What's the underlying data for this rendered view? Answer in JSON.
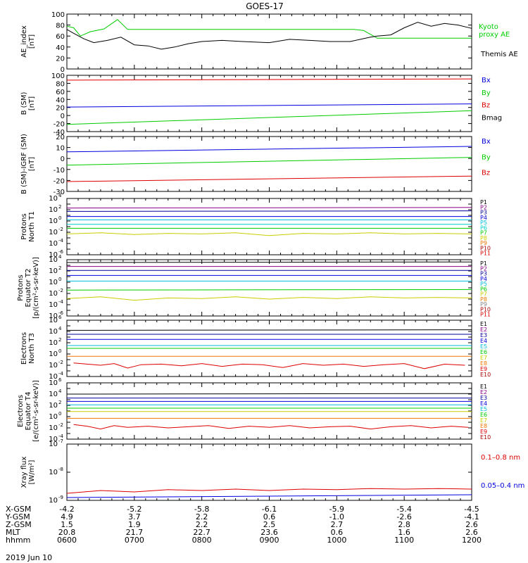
{
  "title": "GOES-17",
  "date_label": "2019 Jun 10",
  "ephemeris": {
    "row_labels": [
      "X-GSM",
      "Y-GSM",
      "Z-GSM",
      "MLT",
      "hhmm"
    ],
    "columns": [
      [
        "-4.2",
        "4.9",
        "1.5",
        "20.8",
        "0600"
      ],
      [
        "-5.2",
        "3.7",
        "1.9",
        "21.7",
        "0700"
      ],
      [
        "-5.8",
        "2.2",
        "2.2",
        "22.7",
        "0800"
      ],
      [
        "-6.1",
        "0.6",
        "2.5",
        "23.6",
        "0900"
      ],
      [
        "-5.9",
        "-1.0",
        "2.7",
        "0.6",
        "1000"
      ],
      [
        "-5.4",
        "-2.6",
        "2.8",
        "1.6",
        "1100"
      ],
      [
        "-4.5",
        "-4.1",
        "2.6",
        "2.6",
        "1200"
      ]
    ]
  },
  "colors": {
    "green": "#00cc00",
    "blue": "#0000dd",
    "red": "#dd0000",
    "black": "#000000",
    "orange": "#ee7700",
    "yellow": "#cccc00",
    "cyan": "#00bbdd",
    "teal": "#00cccc",
    "navy": "#000099",
    "purple": "#880088",
    "darkred": "#aa0000",
    "gray": "#888888"
  },
  "chart_data": [
    {
      "type": "line",
      "ylabel": "AE_index\n[nT]",
      "ylim": [
        0,
        100
      ],
      "yscale": "linear",
      "yticks": [
        "0",
        "20",
        "40",
        "60",
        "80",
        "100"
      ],
      "xlim": [
        6,
        12
      ],
      "series": [
        {
          "name": "Kyoto\nproxy AE",
          "color": "#00cc00",
          "x": [
            6.0,
            6.1,
            6.2,
            6.35,
            6.55,
            6.75,
            6.9,
            7.05,
            7.2,
            8.0,
            9.0,
            10.0,
            10.25,
            10.4,
            10.6,
            12.0
          ],
          "y": [
            78,
            75,
            60,
            68,
            73,
            90,
            72,
            72,
            72,
            72,
            72,
            72,
            72,
            70,
            56,
            56
          ]
        },
        {
          "name": "Themis AE",
          "color": "#000000",
          "x": [
            6.0,
            6.1,
            6.25,
            6.4,
            6.6,
            6.8,
            7.0,
            7.2,
            7.4,
            7.6,
            7.8,
            8.0,
            8.3,
            8.6,
            9.0,
            9.3,
            9.6,
            9.9,
            10.2,
            10.35,
            10.5,
            10.6,
            10.8,
            11.0,
            11.2,
            11.4,
            11.6,
            11.8,
            12.0
          ],
          "y": [
            72,
            65,
            55,
            48,
            52,
            58,
            44,
            42,
            36,
            40,
            46,
            50,
            52,
            50,
            48,
            54,
            52,
            50,
            50,
            54,
            58,
            60,
            62,
            75,
            85,
            78,
            83,
            80,
            74
          ]
        }
      ]
    },
    {
      "type": "line",
      "ylabel": "B (SM)\n[nT]",
      "ylim": [
        -40,
        100
      ],
      "yscale": "linear",
      "yticks": [
        "-40",
        "-20",
        "0",
        "20",
        "40",
        "60",
        "80",
        "100"
      ],
      "xlim": [
        6,
        12
      ],
      "series": [
        {
          "name": "Bx",
          "color": "#0000dd",
          "x": [
            6,
            12
          ],
          "y": [
            21,
            29
          ]
        },
        {
          "name": "By",
          "color": "#00cc00",
          "x": [
            6,
            12
          ],
          "y": [
            -22,
            12
          ]
        },
        {
          "name": "Bz",
          "color": "#dd0000",
          "x": [
            6,
            12
          ],
          "y": [
            88,
            91
          ]
        },
        {
          "name": "Bmag",
          "color": "#000000",
          "x": [],
          "y": []
        }
      ]
    },
    {
      "type": "line",
      "ylabel": "B (SM)-IGRF (SM)\n[nT]",
      "ylim": [
        -30,
        20
      ],
      "yscale": "linear",
      "yticks": [
        "-30",
        "-20",
        "-10",
        "0",
        "10",
        "20"
      ],
      "xlim": [
        6,
        12
      ],
      "series": [
        {
          "name": "Bx",
          "color": "#0000dd",
          "x": [
            6,
            12
          ],
          "y": [
            6,
            11
          ]
        },
        {
          "name": "By",
          "color": "#00cc00",
          "x": [
            6,
            12
          ],
          "y": [
            -6,
            1
          ]
        },
        {
          "name": "Bz",
          "color": "#dd0000",
          "x": [
            6,
            12
          ],
          "y": [
            -21,
            -16
          ]
        }
      ]
    },
    {
      "type": "line",
      "ylabel": "Protons\nNorth T1",
      "ylim_exp": [
        -6,
        4
      ],
      "yscale": "log",
      "xlim": [
        6,
        12
      ],
      "series": [
        {
          "name": "P1",
          "color": "#000000",
          "x": [],
          "y": []
        },
        {
          "name": "P2",
          "color": "#880088",
          "x": [
            6,
            12
          ],
          "y": [
            2.3,
            2.4
          ]
        },
        {
          "name": "P3",
          "color": "#000099",
          "x": [
            6,
            12
          ],
          "y": [
            1.7,
            1.8
          ]
        },
        {
          "name": "P4",
          "color": "#0000dd",
          "x": [
            6,
            12
          ],
          "y": [
            0.8,
            0.8
          ]
        },
        {
          "name": "P5",
          "color": "#00bbdd",
          "x": [
            6,
            12
          ],
          "y": [
            0.2,
            0.2
          ]
        },
        {
          "name": "P6",
          "color": "#00cccc",
          "x": [
            6,
            12
          ],
          "y": [
            -0.6,
            -0.6
          ]
        },
        {
          "name": "P7",
          "color": "#00cc00",
          "x": [
            6,
            12
          ],
          "y": [
            -1.3,
            -1.3
          ]
        },
        {
          "name": "P8",
          "color": "#cccc00",
          "x": [
            6,
            6.5,
            7,
            7.5,
            8,
            8.5,
            9,
            9.5,
            10,
            10.5,
            11,
            11.5,
            12
          ],
          "y": [
            -2.3,
            -2.1,
            -2.4,
            -2.2,
            -2.3,
            -2.1,
            -2.6,
            -2.2,
            -2.3,
            -2.1,
            -2.3,
            -2.2,
            -2.3
          ]
        },
        {
          "name": "P9",
          "color": "#ee7700",
          "x": [],
          "y": []
        },
        {
          "name": "P10",
          "color": "#aa0000",
          "x": [],
          "y": []
        },
        {
          "name": "P11",
          "color": "#dd0000",
          "x": [],
          "y": []
        }
      ]
    },
    {
      "type": "line",
      "ylabel": "Protons\nEquator T2\n[p/(cm²-s-sr-keV)]",
      "ylim_exp": [
        -6,
        4
      ],
      "yscale": "log",
      "xlim": [
        6,
        12
      ],
      "series": [
        {
          "name": "P1",
          "color": "#000000",
          "x": [
            6,
            12
          ],
          "y": [
            3.5,
            3.6
          ]
        },
        {
          "name": "P2",
          "color": "#880088",
          "x": [
            6,
            12
          ],
          "y": [
            2.8,
            2.8
          ]
        },
        {
          "name": "P3",
          "color": "#000099",
          "x": [
            6,
            12
          ],
          "y": [
            2.1,
            2.1
          ]
        },
        {
          "name": "P4",
          "color": "#0000dd",
          "x": [
            6,
            12
          ],
          "y": [
            1.2,
            1.2
          ]
        },
        {
          "name": "P5",
          "color": "#00bbdd",
          "x": [
            6,
            12
          ],
          "y": [
            0.2,
            0.2
          ]
        },
        {
          "name": "P6",
          "color": "#00cc00",
          "x": [
            6,
            12
          ],
          "y": [
            -1.4,
            -1.3
          ]
        },
        {
          "name": "P7",
          "color": "#cccc00",
          "x": [
            6,
            6.5,
            7,
            7.5,
            8,
            8.5,
            9,
            9.5,
            10,
            10.5,
            11,
            11.5,
            12
          ],
          "y": [
            -2.9,
            -2.6,
            -3.2,
            -2.8,
            -2.9,
            -2.6,
            -3.0,
            -2.7,
            -2.9,
            -2.6,
            -2.8,
            -2.7,
            -2.8
          ]
        },
        {
          "name": "P8",
          "color": "#ee7700",
          "x": [],
          "y": []
        },
        {
          "name": "P9",
          "color": "#888888",
          "x": [],
          "y": []
        },
        {
          "name": "P10",
          "color": "#aa0000",
          "x": [],
          "y": []
        },
        {
          "name": "P11",
          "color": "#dd0000",
          "x": [],
          "y": []
        }
      ]
    },
    {
      "type": "line",
      "ylabel": "Electrons\nNorth T3",
      "ylim_exp": [
        -4,
        6
      ],
      "yscale": "log",
      "xlim": [
        6,
        12
      ],
      "series": [
        {
          "name": "E1",
          "color": "#000000",
          "x": [
            6,
            12
          ],
          "y": [
            4.2,
            4.3
          ]
        },
        {
          "name": "E2",
          "color": "#880088",
          "x": [],
          "y": []
        },
        {
          "name": "E3",
          "color": "#000099",
          "x": [
            6,
            12
          ],
          "y": [
            3.5,
            3.5
          ]
        },
        {
          "name": "E4",
          "color": "#0000dd",
          "x": [
            6,
            12
          ],
          "y": [
            2.6,
            2.6
          ]
        },
        {
          "name": "E5",
          "color": "#00bbdd",
          "x": [
            6,
            12
          ],
          "y": [
            1.5,
            1.5
          ]
        },
        {
          "name": "E6",
          "color": "#00cc00",
          "x": [
            6,
            12
          ],
          "y": [
            1.0,
            1.0
          ]
        },
        {
          "name": "E7",
          "color": "#cccc00",
          "x": [],
          "y": []
        },
        {
          "name": "E8",
          "color": "#ee7700",
          "x": [
            6,
            12
          ],
          "y": [
            -0.4,
            -0.4
          ]
        },
        {
          "name": "E9",
          "color": "#dd0000",
          "x": [
            6.1,
            6.3,
            6.5,
            6.7,
            6.9,
            7.1,
            7.4,
            7.7,
            8.0,
            8.3,
            8.6,
            8.9,
            9.2,
            9.5,
            9.8,
            10.1,
            10.4,
            10.7,
            11.0,
            11.3,
            11.6,
            11.9
          ],
          "y": [
            -1.6,
            -1.8,
            -2.0,
            -1.7,
            -2.5,
            -1.9,
            -1.8,
            -2.1,
            -1.7,
            -2.2,
            -1.8,
            -1.9,
            -2.4,
            -1.7,
            -2.0,
            -1.8,
            -2.2,
            -1.9,
            -1.7,
            -2.6,
            -1.8,
            -2.0
          ]
        },
        {
          "name": "E10",
          "color": "#aa0000",
          "x": [],
          "y": []
        }
      ]
    },
    {
      "type": "line",
      "ylabel": "Electrons\nEquator T4\n[e/(cm²-s-sr-keV)]",
      "ylim_exp": [
        -4,
        6
      ],
      "yscale": "log",
      "xlim": [
        6,
        12
      ],
      "series": [
        {
          "name": "E1",
          "color": "#000000",
          "x": [
            6,
            12
          ],
          "y": [
            4.0,
            4.1
          ]
        },
        {
          "name": "E2",
          "color": "#880088",
          "x": [],
          "y": []
        },
        {
          "name": "E3",
          "color": "#000099",
          "x": [
            6,
            12
          ],
          "y": [
            3.3,
            3.3
          ]
        },
        {
          "name": "E4",
          "color": "#0000dd",
          "x": [
            6,
            12
          ],
          "y": [
            2.7,
            2.7
          ]
        },
        {
          "name": "E5",
          "color": "#00bbdd",
          "x": [
            6,
            12
          ],
          "y": [
            2.1,
            2.1
          ]
        },
        {
          "name": "E6",
          "color": "#00cc00",
          "x": [
            6,
            12
          ],
          "y": [
            1.5,
            1.5
          ]
        },
        {
          "name": "E7",
          "color": "#cccc00",
          "x": [
            6,
            12
          ],
          "y": [
            0.9,
            0.9
          ]
        },
        {
          "name": "E8",
          "color": "#ee7700",
          "x": [
            6,
            12
          ],
          "y": [
            -0.3,
            -0.3
          ]
        },
        {
          "name": "E9",
          "color": "#dd0000",
          "x": [
            6.1,
            6.3,
            6.5,
            6.7,
            6.9,
            7.2,
            7.5,
            7.8,
            8.1,
            8.4,
            8.7,
            9.0,
            9.3,
            9.6,
            9.9,
            10.2,
            10.5,
            10.8,
            11.1,
            11.4,
            11.7,
            11.95
          ],
          "y": [
            -1.4,
            -1.7,
            -2.2,
            -1.6,
            -1.9,
            -1.7,
            -2.0,
            -1.8,
            -1.6,
            -2.1,
            -1.7,
            -1.9,
            -1.6,
            -2.0,
            -1.8,
            -1.7,
            -2.2,
            -1.8,
            -1.6,
            -2.0,
            -1.7,
            -1.9
          ]
        },
        {
          "name": "E10",
          "color": "#aa0000",
          "x": [],
          "y": []
        }
      ]
    },
    {
      "type": "line",
      "ylabel": "Xray flux\n[W/m²]",
      "ylim_exp": [
        -9,
        -7
      ],
      "yscale": "log",
      "xlim": [
        6,
        12
      ],
      "series": [
        {
          "name": "0.1–0.8 nm",
          "color": "#dd0000",
          "x": [
            6,
            6.5,
            7,
            7.5,
            8,
            8.5,
            9,
            9.5,
            10,
            10.5,
            11,
            11.5,
            12
          ],
          "y": [
            -8.75,
            -8.65,
            -8.7,
            -8.62,
            -8.65,
            -8.6,
            -8.65,
            -8.6,
            -8.62,
            -8.58,
            -8.6,
            -8.58,
            -8.6
          ]
        },
        {
          "name": "0.05–0.4 nm",
          "color": "#0000dd",
          "x": [
            6,
            12
          ],
          "y": [
            -8.9,
            -8.8
          ]
        }
      ]
    }
  ],
  "x_tick_labels": [
    "0600",
    "0700",
    "0800",
    "0900",
    "1000",
    "1100",
    "1200"
  ]
}
